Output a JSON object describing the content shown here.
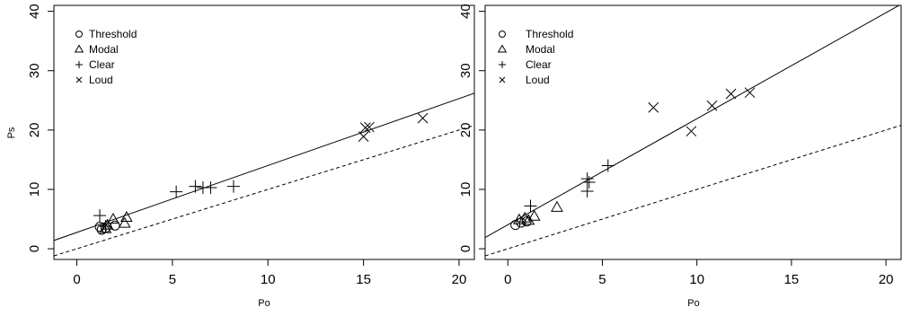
{
  "chart_data": [
    {
      "type": "scatter",
      "title": "",
      "xlabel": "Po",
      "ylabel": "Ps",
      "xlim": [
        -1.2,
        20.8
      ],
      "ylim": [
        -1.8,
        41
      ],
      "xticks": [
        0,
        5,
        10,
        15,
        20
      ],
      "yticks": [
        0,
        10,
        20,
        30,
        40
      ],
      "grid": false,
      "legend_position": "top-left",
      "series": [
        {
          "name": "Threshold",
          "marker": "circle",
          "points": [
            [
              1.2,
              3.7
            ],
            [
              1.3,
              3.2
            ],
            [
              1.5,
              3.5
            ],
            [
              2.0,
              3.9
            ]
          ]
        },
        {
          "name": "Modal",
          "marker": "triangle",
          "points": [
            [
              1.5,
              3.4
            ],
            [
              1.6,
              4.0
            ],
            [
              1.9,
              5.0
            ],
            [
              2.5,
              4.3
            ],
            [
              2.6,
              5.3
            ]
          ]
        },
        {
          "name": "Clear",
          "marker": "plus",
          "points": [
            [
              1.2,
              5.6
            ],
            [
              1.5,
              3.8
            ],
            [
              5.2,
              9.6
            ],
            [
              6.2,
              10.5
            ],
            [
              6.6,
              10.3
            ],
            [
              7.0,
              10.3
            ],
            [
              8.2,
              10.5
            ]
          ]
        },
        {
          "name": "Loud",
          "marker": "cross",
          "points": [
            [
              15.0,
              18.9
            ],
            [
              15.1,
              20.4
            ],
            [
              15.3,
              20.5
            ],
            [
              18.1,
              22.0
            ]
          ]
        }
      ],
      "lines": [
        {
          "style": "solid",
          "x": [
            -1.2,
            20.8
          ],
          "y": [
            1.4,
            26.2
          ]
        },
        {
          "style": "dashed",
          "x": [
            -1.2,
            20.8
          ],
          "y": [
            -1.2,
            20.8
          ]
        }
      ]
    },
    {
      "type": "scatter",
      "title": "",
      "xlabel": "Po",
      "ylabel": "",
      "xlim": [
        -1.2,
        20.8
      ],
      "ylim": [
        -1.8,
        41
      ],
      "xticks": [
        0,
        5,
        10,
        15,
        20
      ],
      "yticks": [
        0,
        10,
        20,
        30,
        40
      ],
      "grid": false,
      "legend_position": "top-left",
      "series": [
        {
          "name": "Threshold",
          "marker": "circle",
          "points": [
            [
              0.4,
              4.0
            ],
            [
              0.7,
              4.4
            ],
            [
              1.0,
              4.6
            ]
          ]
        },
        {
          "name": "Modal",
          "marker": "triangle",
          "points": [
            [
              0.6,
              4.9
            ],
            [
              0.9,
              5.2
            ],
            [
              1.1,
              4.8
            ],
            [
              1.4,
              5.5
            ],
            [
              2.6,
              7.0
            ]
          ]
        },
        {
          "name": "Clear",
          "marker": "plus",
          "points": [
            [
              1.2,
              7.2
            ],
            [
              4.2,
              9.7
            ],
            [
              4.2,
              11.8
            ],
            [
              4.3,
              11.2
            ],
            [
              5.3,
              14.0
            ]
          ]
        },
        {
          "name": "Loud",
          "marker": "cross",
          "points": [
            [
              7.7,
              23.8
            ],
            [
              9.7,
              19.8
            ],
            [
              10.8,
              24.1
            ],
            [
              11.8,
              26.1
            ],
            [
              12.8,
              26.3
            ]
          ]
        }
      ],
      "lines": [
        {
          "style": "solid",
          "x": [
            -1.2,
            20.8
          ],
          "y": [
            1.9,
            41.2
          ]
        },
        {
          "style": "dashed",
          "x": [
            -1.2,
            20.8
          ],
          "y": [
            -1.2,
            20.8
          ]
        }
      ]
    }
  ]
}
